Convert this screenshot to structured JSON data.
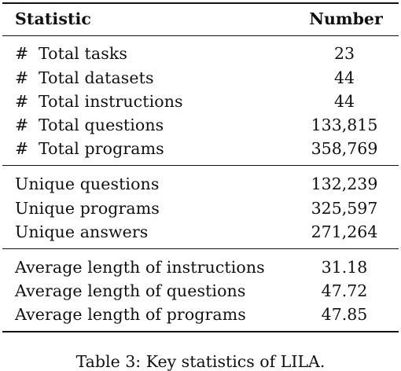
{
  "table": {
    "header": {
      "statistic": "Statistic",
      "number": "Number"
    },
    "groups": [
      {
        "rows": [
          {
            "prefix": "#",
            "label": "Total tasks",
            "value": "23"
          },
          {
            "prefix": "#",
            "label": "Total datasets",
            "value": "44"
          },
          {
            "prefix": "#",
            "label": "Total instructions",
            "value": "44"
          },
          {
            "prefix": "#",
            "label": "Total questions",
            "value": "133,815"
          },
          {
            "prefix": "#",
            "label": "Total programs",
            "value": "358,769"
          }
        ]
      },
      {
        "rows": [
          {
            "label": "Unique questions",
            "value": "132,239"
          },
          {
            "label": "Unique programs",
            "value": "325,597"
          },
          {
            "label": "Unique answers",
            "value": "271,264"
          }
        ]
      },
      {
        "rows": [
          {
            "label": "Average length of instructions",
            "value": "31.18"
          },
          {
            "label": "Average length of questions",
            "value": "47.72"
          },
          {
            "label": "Average length of programs",
            "value": "47.85"
          }
        ]
      }
    ]
  },
  "caption": {
    "text": "Table 3: Key statistics of LILA."
  }
}
